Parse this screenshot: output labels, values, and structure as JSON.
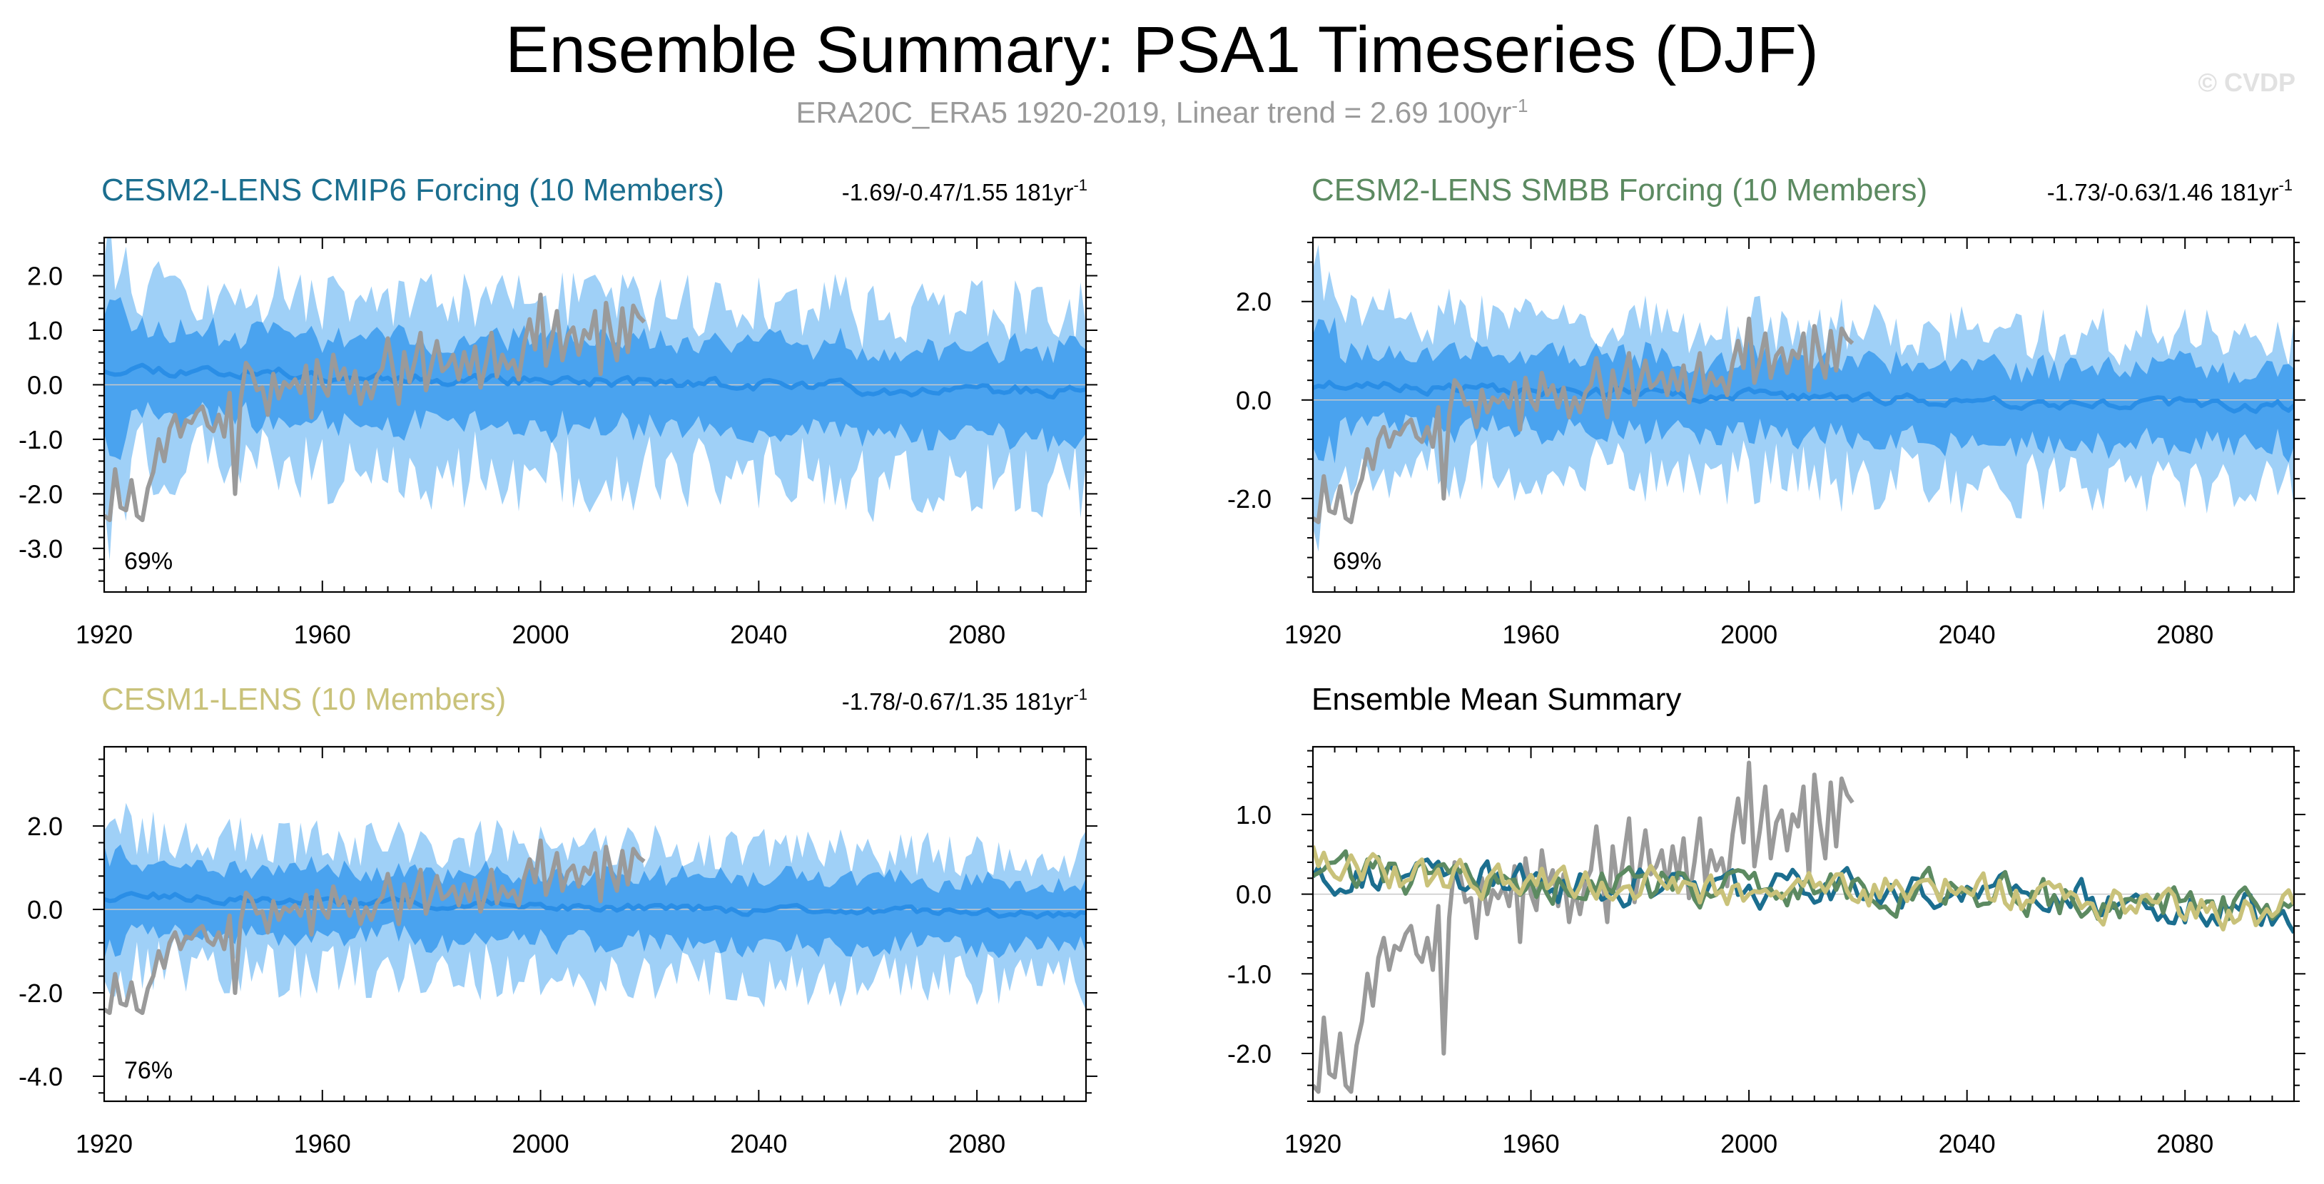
{
  "title": "Ensemble Summary: PSA1 Timeseries (DJF)",
  "subtitle_main": "ERA20C_ERA5 1920-2019, Linear trend = 2.69 100yr",
  "subtitle_exp": "-1",
  "watermark": "© CVDP",
  "chart_data": [
    {
      "type": "area",
      "panel": "top-left",
      "title": "CESM2-LENS CMIP6 Forcing (10 Members)",
      "title_color": "#1b6e8f",
      "stats": "-1.69/-0.47/1.55 181yr",
      "stats_exp": "-1",
      "percent": "69%",
      "xlim": [
        1920,
        2100
      ],
      "ylim": [
        -3.8,
        2.7
      ],
      "xticks": [
        1920,
        1960,
        2000,
        2040,
        2080
      ],
      "yticks": [
        -3.0,
        -2.0,
        -1.0,
        0.0,
        1.0,
        2.0
      ],
      "ytick_labels": [
        "-3.0",
        "-2.0",
        "-1.0",
        "0.0",
        "1.0",
        "2.0"
      ],
      "ensemble_spread": {
        "outer_color": "#9fd0f7",
        "inner_color": "#4aa3ef",
        "mean_color": "#2a8ee6"
      },
      "observed": {
        "name": "ERA20C_ERA5",
        "color": "#9a9a9a",
        "years": [
          1920,
          2019
        ]
      },
      "seed": 11
    },
    {
      "type": "area",
      "panel": "top-right",
      "title": "CESM2-LENS SMBB Forcing (10 Members)",
      "title_color": "#5c8a61",
      "stats": "-1.73/-0.63/1.46 181yr",
      "stats_exp": "-1",
      "percent": "69%",
      "xlim": [
        1920,
        2100
      ],
      "ylim": [
        -3.9,
        3.3
      ],
      "xticks": [
        1920,
        1960,
        2000,
        2040,
        2080
      ],
      "yticks": [
        -2.0,
        0.0,
        2.0
      ],
      "ytick_labels": [
        "-2.0",
        "0.0",
        "2.0"
      ],
      "ensemble_spread": {
        "outer_color": "#9fd0f7",
        "inner_color": "#4aa3ef",
        "mean_color": "#2a8ee6"
      },
      "observed": {
        "name": "ERA20C_ERA5",
        "color": "#9a9a9a",
        "years": [
          1920,
          2019
        ]
      },
      "seed": 23
    },
    {
      "type": "area",
      "panel": "bottom-left",
      "title": "CESM1-LENS (10 Members)",
      "title_color": "#c9c27a",
      "stats": "-1.78/-0.67/1.35 181yr",
      "stats_exp": "-1",
      "percent": "76%",
      "xlim": [
        1920,
        2100
      ],
      "ylim": [
        -4.6,
        3.9
      ],
      "xticks": [
        1920,
        1960,
        2000,
        2040,
        2080
      ],
      "yticks": [
        -4.0,
        -2.0,
        0.0,
        2.0
      ],
      "ytick_labels": [
        "-4.0",
        "-2.0",
        "0.0",
        "2.0"
      ],
      "ensemble_spread": {
        "outer_color": "#9fd0f7",
        "inner_color": "#4aa3ef",
        "mean_color": "#2a8ee6"
      },
      "observed": {
        "name": "ERA20C_ERA5",
        "color": "#9a9a9a",
        "years": [
          1920,
          2019
        ]
      },
      "seed": 37
    },
    {
      "type": "line",
      "panel": "bottom-right",
      "title": "Ensemble Mean Summary",
      "title_color": "#000000",
      "xlim": [
        1920,
        2100
      ],
      "ylim": [
        -2.6,
        1.85
      ],
      "xticks": [
        1920,
        1960,
        2000,
        2040,
        2080
      ],
      "yticks": [
        -2.0,
        -1.0,
        0.0,
        1.0
      ],
      "ytick_labels": [
        "-2.0",
        "-1.0",
        "0.0",
        "1.0"
      ],
      "series": [
        {
          "name": "ERA20C_ERA5",
          "color": "#9a9a9a"
        },
        {
          "name": "CESM2-LENS CMIP6 Forcing",
          "color": "#1b6e8f"
        },
        {
          "name": "CESM2-LENS SMBB Forcing",
          "color": "#5c8a61"
        },
        {
          "name": "CESM1-LENS",
          "color": "#c9c27a"
        }
      ],
      "seed": 51
    }
  ],
  "observed_series": {
    "name": "ERA20C_ERA5",
    "years_start": 1920,
    "values": [
      -2.4,
      -2.48,
      -1.55,
      -2.25,
      -2.3,
      -1.75,
      -2.4,
      -2.48,
      -1.9,
      -1.6,
      -1.0,
      -1.4,
      -0.8,
      -0.55,
      -0.95,
      -0.65,
      -0.7,
      -0.5,
      -0.4,
      -0.75,
      -0.85,
      -0.55,
      -0.95,
      -0.15,
      -2.0,
      -0.3,
      0.4,
      0.25,
      -0.1,
      -0.05,
      -0.55,
      0.2,
      -0.25,
      0.05,
      -0.05,
      0.1,
      -0.15,
      0.35,
      -0.6,
      0.45,
      0.0,
      -0.2,
      0.55,
      0.1,
      0.3,
      -0.15,
      0.25,
      -0.35,
      0.05,
      -0.25,
      0.15,
      0.3,
      0.85,
      0.25,
      -0.35,
      0.6,
      0.05,
      0.45,
      0.95,
      -0.1,
      0.35,
      0.8,
      0.25,
      0.35,
      0.55,
      0.1,
      0.6,
      0.2,
      0.7,
      -0.05,
      0.4,
      0.95,
      0.15,
      0.55,
      0.3,
      0.45,
      0.1,
      0.75,
      1.2,
      0.65,
      1.65,
      0.35,
      0.8,
      1.35,
      0.45,
      0.9,
      1.05,
      0.55,
      1.0,
      0.85,
      1.35,
      0.2,
      1.5,
      0.9,
      0.45,
      1.4,
      0.6,
      1.45,
      1.25,
      1.15
    ]
  }
}
